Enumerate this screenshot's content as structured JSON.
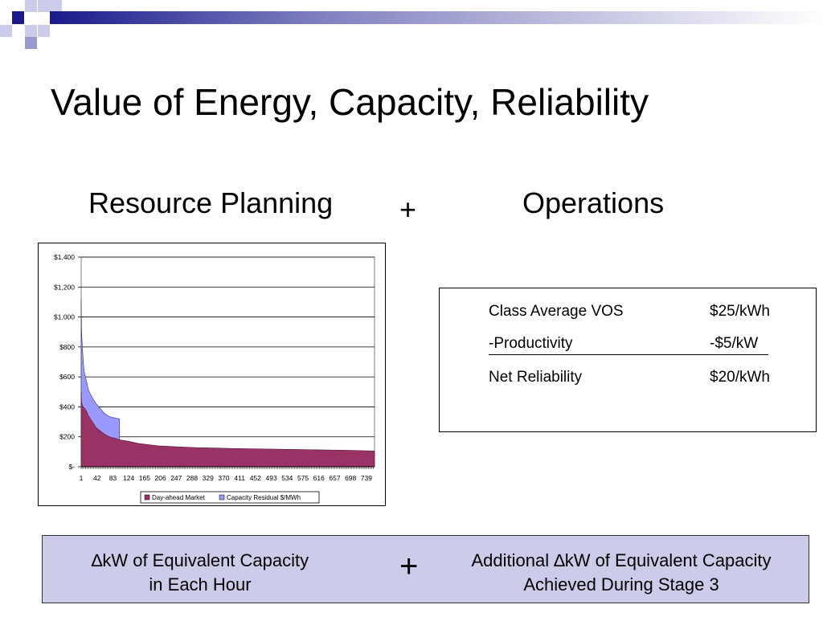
{
  "slide": {
    "title": "Value of Energy, Capacity, Reliability",
    "left_heading": "Resource Planning",
    "plus_symbol": "+",
    "right_heading": "Operations"
  },
  "operations_table": {
    "rows": [
      {
        "label": "Class Average VOS",
        "value": "$25/kWh"
      },
      {
        "label": "-Productivity",
        "value": "-$5/kW"
      },
      {
        "label": "Net Reliability",
        "value": "$20/kWh"
      }
    ]
  },
  "bottom_banner": {
    "left_line1": "∆kW of Equivalent Capacity",
    "left_line2": "in Each Hour",
    "plus_symbol": "+",
    "right_line1": "Additional ∆kW of Equivalent Capacity",
    "right_line2": "Achieved During Stage 3"
  },
  "colors": {
    "day_ahead": "#993366",
    "capacity_residual": "#9999ff",
    "banner_bg": "#ccccea"
  },
  "chart_data": {
    "type": "area",
    "y_ticks": [
      "$1,400",
      "$1,200",
      "$1,000",
      "$800",
      "$600",
      "$400",
      "$200",
      "$-"
    ],
    "y_tick_values": [
      1400,
      1200,
      1000,
      800,
      600,
      400,
      200,
      0
    ],
    "x_ticks": [
      "1",
      "42",
      "83",
      "124",
      "165",
      "206",
      "247",
      "288",
      "329",
      "370",
      "411",
      "452",
      "493",
      "534",
      "575",
      "616",
      "657",
      "698",
      "739"
    ],
    "x_tick_values": [
      1,
      42,
      83,
      124,
      165,
      206,
      247,
      288,
      329,
      370,
      411,
      452,
      493,
      534,
      575,
      616,
      657,
      698,
      739
    ],
    "xlim": [
      1,
      760
    ],
    "ylim": [
      0,
      1400
    ],
    "grid": true,
    "legend_position": "bottom",
    "series": [
      {
        "name": "Day-ahead Market",
        "x": [
          1,
          2,
          4,
          6,
          10,
          15,
          20,
          30,
          40,
          50,
          60,
          70,
          80,
          90,
          100,
          124,
          150,
          200,
          250,
          300,
          400,
          500,
          600,
          700,
          760
        ],
        "y": [
          500,
          430,
          410,
          400,
          390,
          370,
          340,
          300,
          260,
          240,
          220,
          205,
          195,
          190,
          180,
          170,
          155,
          140,
          133,
          128,
          122,
          118,
          114,
          110,
          105
        ]
      },
      {
        "name": "Capacity Residual $/MWh",
        "x": [
          1,
          2,
          4,
          6,
          8,
          10,
          15,
          20,
          30,
          40,
          50,
          60,
          70,
          80,
          90,
          100,
          101
        ],
        "y": [
          1120,
          900,
          800,
          720,
          650,
          620,
          570,
          510,
          460,
          420,
          390,
          360,
          340,
          330,
          325,
          320,
          0
        ]
      }
    ]
  }
}
